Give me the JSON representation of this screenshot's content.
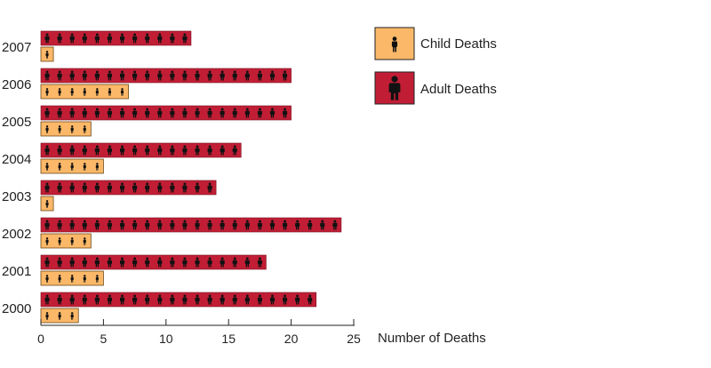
{
  "chart_data": {
    "type": "bar",
    "categories": [
      "2007",
      "2006",
      "2005",
      "2004",
      "2003",
      "2002",
      "2001",
      "2000"
    ],
    "series": [
      {
        "name": "Child Deaths",
        "values": [
          1,
          7,
          4,
          5,
          1,
          4,
          5,
          3
        ]
      },
      {
        "name": "Adult Deaths",
        "values": [
          12,
          20,
          20,
          16,
          14,
          24,
          18,
          22
        ]
      }
    ],
    "xlabel": "Number of Deaths",
    "ylabel": "",
    "xlim": [
      0,
      25
    ],
    "xticks": [
      0,
      5,
      10,
      15,
      20,
      25
    ],
    "orientation": "horizontal",
    "grid": false,
    "legend": {
      "placement": "right"
    },
    "pictogram": {
      "child_icon": "child-figure-icon",
      "adult_icon": "adult-figure-icon"
    }
  },
  "colors": {
    "adult": "#c11e36",
    "child": "#fbb868",
    "icon": "#111111",
    "axis": "#222222"
  }
}
